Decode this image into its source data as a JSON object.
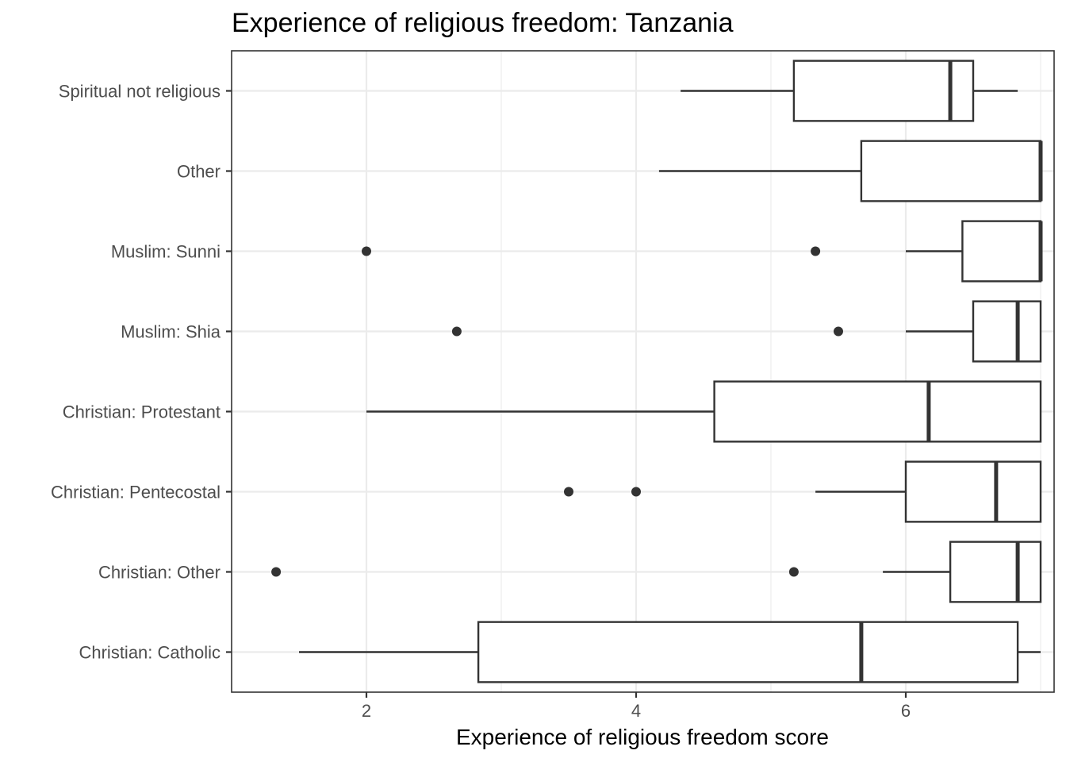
{
  "chart_data": {
    "type": "boxplot",
    "orientation": "horizontal",
    "title": "Experience of religious freedom: Tanzania",
    "xlabel": "Experience of religious freedom score",
    "ylabel": "",
    "xlim": [
      1.0,
      7.1
    ],
    "x_ticks": [
      2,
      4,
      6
    ],
    "grid": true,
    "categories": [
      "Spiritual not religious",
      "Other",
      "Muslim: Sunni",
      "Muslim: Shia",
      "Christian: Protestant",
      "Christian: Pentecostal",
      "Christian: Other",
      "Christian: Catholic"
    ],
    "boxes": [
      {
        "category": "Spiritual not religious",
        "whisker_low": 4.33,
        "q1": 5.17,
        "median": 6.33,
        "q3": 6.5,
        "whisker_high": 6.83,
        "outliers": []
      },
      {
        "category": "Other",
        "whisker_low": 4.17,
        "q1": 5.67,
        "median": 7.0,
        "q3": 7.0,
        "whisker_high": 7.0,
        "outliers": []
      },
      {
        "category": "Muslim: Sunni",
        "whisker_low": 6.0,
        "q1": 6.42,
        "median": 7.0,
        "q3": 7.0,
        "whisker_high": 7.0,
        "outliers": [
          2.0,
          5.33
        ]
      },
      {
        "category": "Muslim: Shia",
        "whisker_low": 6.0,
        "q1": 6.5,
        "median": 6.83,
        "q3": 7.0,
        "whisker_high": 7.0,
        "outliers": [
          2.67,
          5.5
        ]
      },
      {
        "category": "Christian: Protestant",
        "whisker_low": 2.0,
        "q1": 4.58,
        "median": 6.17,
        "q3": 7.0,
        "whisker_high": 7.0,
        "outliers": []
      },
      {
        "category": "Christian: Pentecostal",
        "whisker_low": 5.33,
        "q1": 6.0,
        "median": 6.67,
        "q3": 7.0,
        "whisker_high": 7.0,
        "outliers": [
          3.5,
          4.0
        ]
      },
      {
        "category": "Christian: Other",
        "whisker_low": 5.83,
        "q1": 6.33,
        "median": 6.83,
        "q3": 7.0,
        "whisker_high": 7.0,
        "outliers": [
          1.33,
          5.17
        ]
      },
      {
        "category": "Christian: Catholic",
        "whisker_low": 1.5,
        "q1": 2.83,
        "median": 5.67,
        "q3": 6.83,
        "whisker_high": 7.0,
        "outliers": []
      }
    ]
  }
}
